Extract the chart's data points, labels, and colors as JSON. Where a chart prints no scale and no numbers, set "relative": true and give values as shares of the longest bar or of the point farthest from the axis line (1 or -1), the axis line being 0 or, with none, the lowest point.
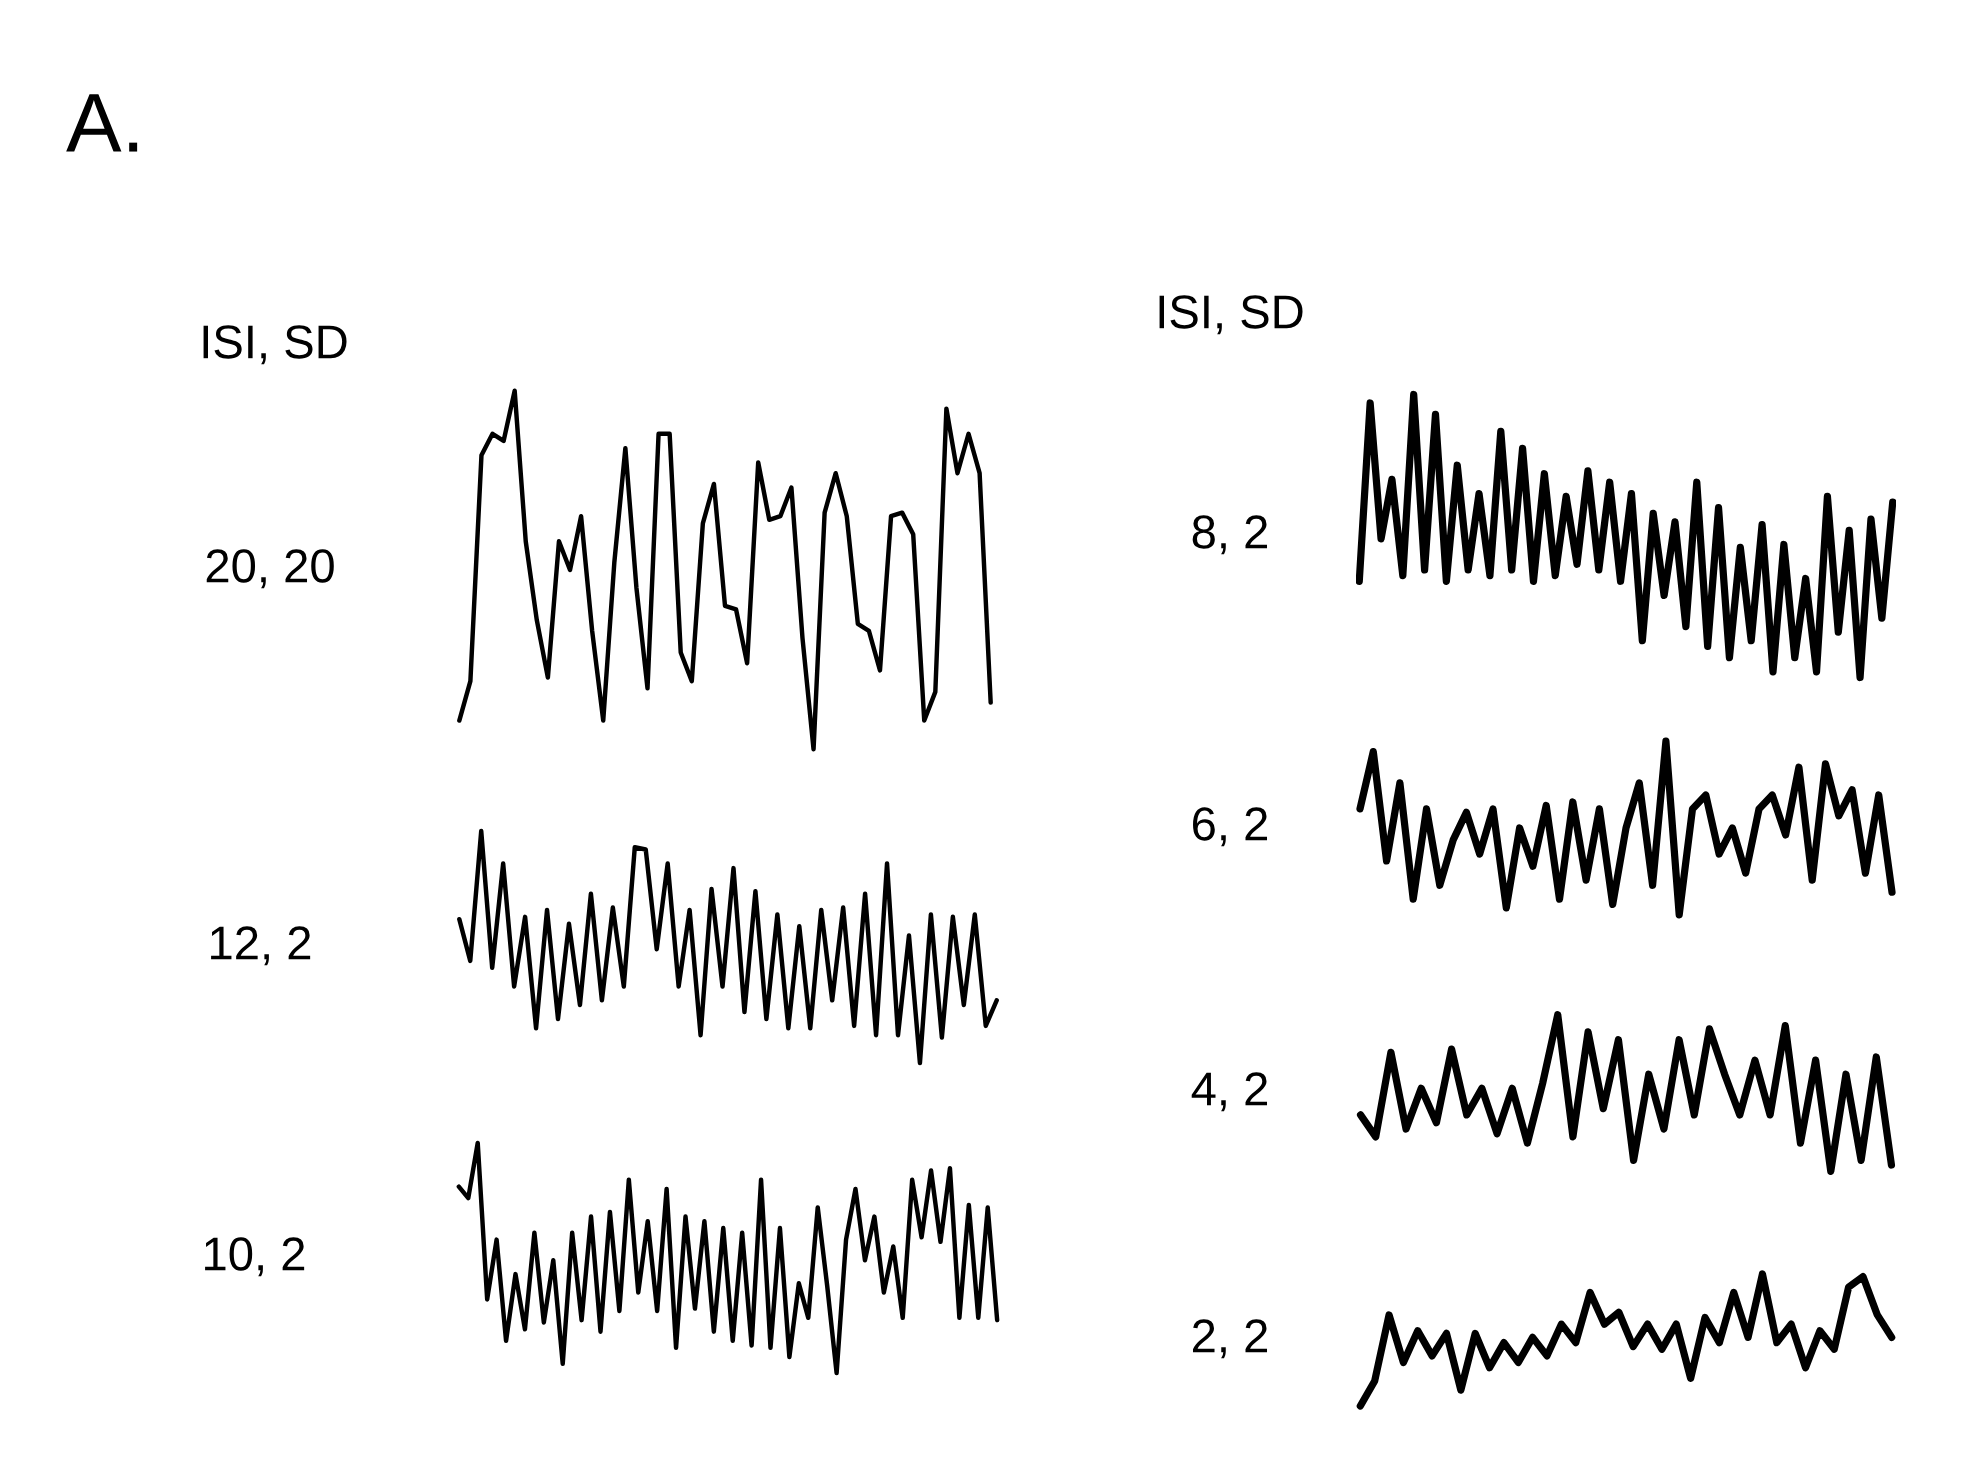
{
  "chart_data": [
    {
      "type": "line",
      "relative": true,
      "ylabel": "20, 20",
      "annotations": [
        "A.",
        "ISI, SD"
      ],
      "categories": [
        null,
        null,
        null,
        null,
        null,
        null,
        null,
        null,
        null,
        null,
        null,
        null,
        null,
        null,
        null,
        null,
        null,
        null,
        null,
        null,
        null,
        null,
        null,
        null,
        null,
        null,
        null,
        null,
        null,
        null,
        null,
        null,
        null,
        null,
        null,
        null,
        null,
        null,
        null,
        null,
        null,
        null,
        null,
        null,
        null,
        null,
        null,
        null,
        null
      ],
      "series": [
        {
          "color": "#000000",
          "values": [
            0.08,
            0.19,
            0.82,
            0.88,
            0.86,
            1.0,
            0.58,
            0.36,
            0.2,
            0.58,
            0.5,
            0.65,
            0.33,
            0.08,
            0.52,
            0.84,
            0.45,
            0.17,
            0.88,
            0.88,
            0.27,
            0.19,
            0.63,
            0.74,
            0.4,
            0.39,
            0.24,
            0.8,
            0.64,
            0.65,
            0.73,
            0.31,
            0.0,
            0.66,
            0.77,
            0.65,
            0.35,
            0.33,
            0.22,
            0.65,
            0.66,
            0.6,
            0.08,
            0.16,
            0.95,
            0.77,
            0.88,
            0.77,
            0.13
          ]
        }
      ]
    },
    {
      "type": "line",
      "relative": true,
      "ylabel": "12, 2",
      "categories": [
        null,
        null,
        null,
        null,
        null,
        null,
        null,
        null,
        null,
        null,
        null,
        null,
        null,
        null,
        null,
        null,
        null,
        null,
        null,
        null,
        null,
        null,
        null,
        null,
        null,
        null,
        null,
        null,
        null,
        null,
        null,
        null,
        null,
        null,
        null,
        null,
        null,
        null,
        null,
        null,
        null,
        null,
        null,
        null,
        null,
        null,
        null,
        null,
        null,
        null
      ],
      "series": [
        {
          "color": "#000000",
          "values": [
            0.62,
            0.44,
            1.0,
            0.41,
            0.86,
            0.33,
            0.63,
            0.15,
            0.66,
            0.19,
            0.6,
            0.25,
            0.73,
            0.27,
            0.67,
            0.33,
            0.93,
            0.92,
            0.49,
            0.86,
            0.33,
            0.66,
            0.12,
            0.75,
            0.33,
            0.84,
            0.22,
            0.74,
            0.19,
            0.64,
            0.15,
            0.59,
            0.15,
            0.66,
            0.27,
            0.67,
            0.16,
            0.73,
            0.12,
            0.86,
            0.12,
            0.55,
            0.0,
            0.64,
            0.11,
            0.63,
            0.25,
            0.64,
            0.16,
            0.27
          ]
        }
      ]
    },
    {
      "type": "line",
      "relative": true,
      "ylabel": "10, 2",
      "categories": [
        null,
        null,
        null,
        null,
        null,
        null,
        null,
        null,
        null,
        null,
        null,
        null,
        null,
        null,
        null,
        null,
        null,
        null,
        null,
        null,
        null,
        null,
        null,
        null,
        null,
        null,
        null,
        null,
        null,
        null,
        null,
        null,
        null,
        null,
        null,
        null,
        null,
        null,
        null,
        null,
        null,
        null,
        null,
        null,
        null,
        null,
        null,
        null,
        null,
        null,
        null,
        null,
        null,
        null,
        null,
        null,
        null,
        null
      ],
      "series": [
        {
          "color": "#000000",
          "values": [
            0.81,
            0.76,
            1.0,
            0.32,
            0.58,
            0.14,
            0.43,
            0.19,
            0.61,
            0.22,
            0.49,
            0.04,
            0.61,
            0.23,
            0.68,
            0.18,
            0.7,
            0.27,
            0.84,
            0.35,
            0.66,
            0.27,
            0.8,
            0.11,
            0.68,
            0.28,
            0.66,
            0.18,
            0.63,
            0.14,
            0.61,
            0.12,
            0.84,
            0.11,
            0.63,
            0.07,
            0.39,
            0.24,
            0.72,
            0.38,
            0.0,
            0.58,
            0.8,
            0.49,
            0.68,
            0.35,
            0.55,
            0.24,
            0.84,
            0.59,
            0.88,
            0.57,
            0.89,
            0.24,
            0.73,
            0.24,
            0.72,
            0.23
          ]
        }
      ]
    },
    {
      "type": "line",
      "relative": true,
      "ylabel": "8, 2",
      "annotations": [
        "ISI, SD"
      ],
      "categories": [
        null,
        null,
        null,
        null,
        null,
        null,
        null,
        null,
        null,
        null,
        null,
        null,
        null,
        null,
        null,
        null,
        null,
        null,
        null,
        null,
        null,
        null,
        null,
        null,
        null,
        null,
        null,
        null,
        null,
        null,
        null,
        null,
        null,
        null,
        null,
        null,
        null,
        null,
        null,
        null,
        null,
        null,
        null,
        null,
        null,
        null,
        null,
        null,
        null,
        null
      ],
      "series": [
        {
          "color": "#000000",
          "values": [
            0.34,
            0.97,
            0.49,
            0.7,
            0.36,
            1.0,
            0.38,
            0.93,
            0.34,
            0.75,
            0.38,
            0.65,
            0.36,
            0.87,
            0.38,
            0.81,
            0.34,
            0.72,
            0.36,
            0.64,
            0.4,
            0.73,
            0.38,
            0.69,
            0.34,
            0.65,
            0.13,
            0.58,
            0.29,
            0.55,
            0.18,
            0.69,
            0.11,
            0.6,
            0.07,
            0.46,
            0.13,
            0.54,
            0.02,
            0.47,
            0.07,
            0.35,
            0.02,
            0.64,
            0.16,
            0.52,
            0.0,
            0.56,
            0.21,
            0.62
          ]
        }
      ]
    },
    {
      "type": "line",
      "relative": true,
      "ylabel": "6, 2",
      "categories": [
        null,
        null,
        null,
        null,
        null,
        null,
        null,
        null,
        null,
        null,
        null,
        null,
        null,
        null,
        null,
        null,
        null,
        null,
        null,
        null,
        null,
        null,
        null,
        null,
        null,
        null,
        null,
        null,
        null,
        null,
        null,
        null,
        null,
        null,
        null,
        null,
        null,
        null,
        null,
        null,
        null
      ],
      "series": [
        {
          "color": "#000000",
          "values": [
            0.61,
            0.94,
            0.31,
            0.76,
            0.09,
            0.61,
            0.17,
            0.43,
            0.59,
            0.35,
            0.61,
            0.04,
            0.5,
            0.28,
            0.63,
            0.09,
            0.65,
            0.2,
            0.61,
            0.06,
            0.5,
            0.76,
            0.17,
            1.0,
            0.0,
            0.61,
            0.69,
            0.35,
            0.5,
            0.24,
            0.61,
            0.69,
            0.46,
            0.85,
            0.2,
            0.87,
            0.57,
            0.72,
            0.24,
            0.69,
            0.13
          ]
        }
      ]
    },
    {
      "type": "line",
      "relative": true,
      "ylabel": "4, 2",
      "categories": [
        null,
        null,
        null,
        null,
        null,
        null,
        null,
        null,
        null,
        null,
        null,
        null,
        null,
        null,
        null,
        null,
        null,
        null,
        null,
        null,
        null,
        null,
        null,
        null,
        null,
        null,
        null,
        null,
        null,
        null,
        null,
        null,
        null,
        null,
        null,
        null
      ],
      "series": [
        {
          "color": "#000000",
          "values": [
            0.36,
            0.22,
            0.76,
            0.27,
            0.53,
            0.31,
            0.78,
            0.36,
            0.53,
            0.24,
            0.53,
            0.18,
            0.56,
            1.0,
            0.22,
            0.89,
            0.4,
            0.84,
            0.07,
            0.62,
            0.27,
            0.84,
            0.36,
            0.91,
            0.62,
            0.36,
            0.71,
            0.36,
            0.93,
            0.18,
            0.71,
            0.0,
            0.62,
            0.07,
            0.73,
            0.04
          ]
        }
      ]
    },
    {
      "type": "line",
      "relative": true,
      "ylabel": "2, 2",
      "categories": [
        null,
        null,
        null,
        null,
        null,
        null,
        null,
        null,
        null,
        null,
        null,
        null,
        null,
        null,
        null,
        null,
        null,
        null,
        null,
        null,
        null,
        null,
        null,
        null,
        null,
        null,
        null,
        null,
        null,
        null,
        null,
        null,
        null,
        null,
        null,
        null,
        null,
        null
      ],
      "series": [
        {
          "color": "#000000",
          "values": [
            0.0,
            0.19,
            0.69,
            0.33,
            0.57,
            0.38,
            0.55,
            0.12,
            0.55,
            0.29,
            0.48,
            0.33,
            0.52,
            0.38,
            0.62,
            0.48,
            0.86,
            0.62,
            0.71,
            0.45,
            0.62,
            0.43,
            0.62,
            0.21,
            0.67,
            0.48,
            0.86,
            0.52,
            1.0,
            0.48,
            0.62,
            0.29,
            0.57,
            0.43,
            0.9,
            0.98,
            0.69,
            0.52
          ]
        }
      ]
    }
  ]
}
